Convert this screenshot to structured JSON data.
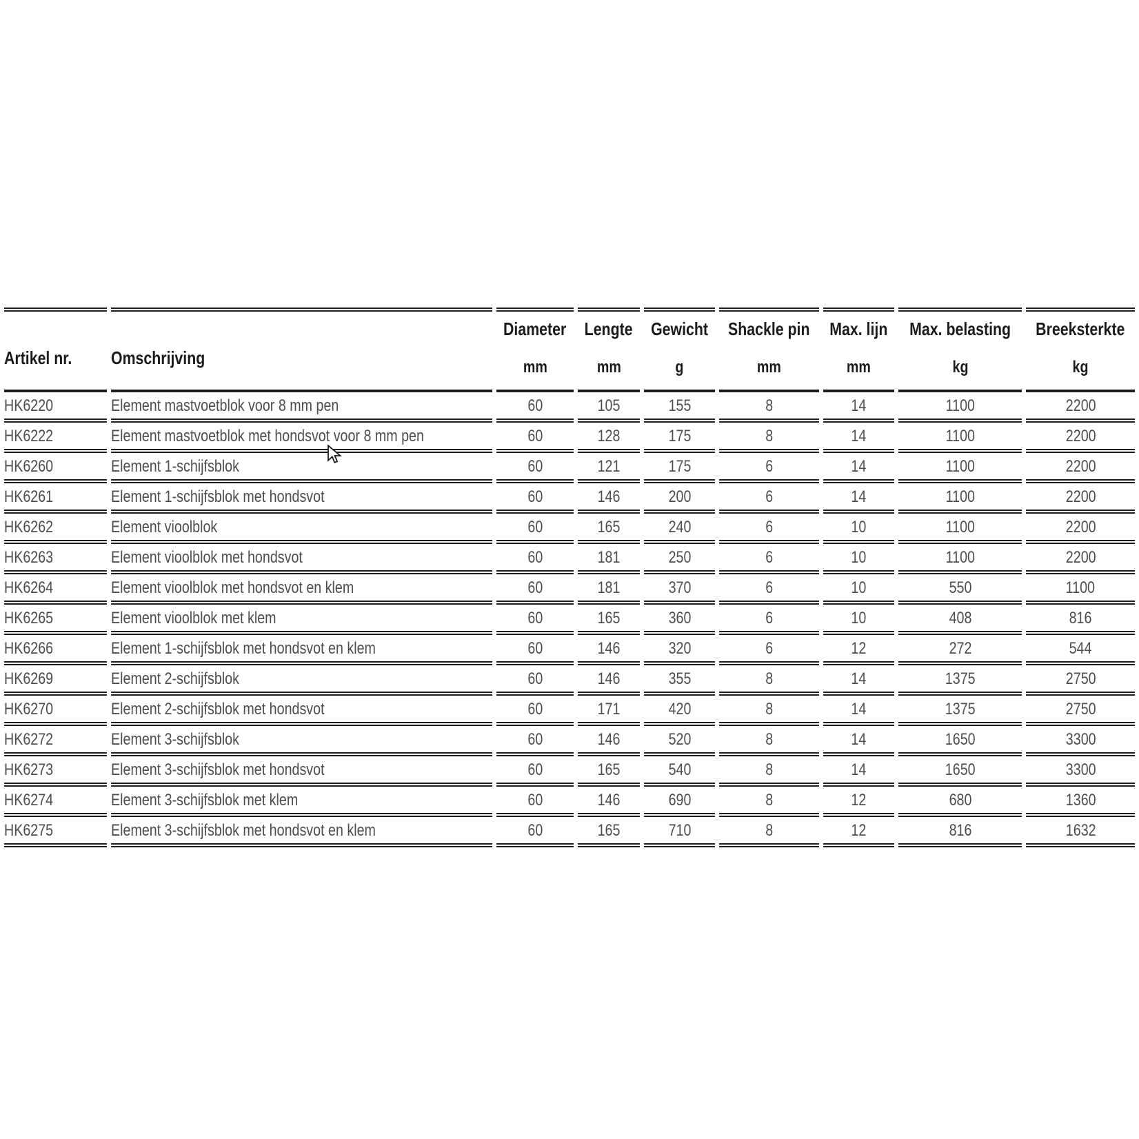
{
  "page": {
    "background": "#ffffff",
    "line_color": "#1c1c1c",
    "header_text_color": "#1b1b1b",
    "body_text_color": "#4d4d4d"
  },
  "table": {
    "columns": [
      {
        "label": "Artikel nr.",
        "unit": ""
      },
      {
        "label": "Omschrijving",
        "unit": ""
      },
      {
        "label": "Diameter",
        "unit": "mm"
      },
      {
        "label": "Lengte",
        "unit": "mm"
      },
      {
        "label": "Gewicht",
        "unit": "g"
      },
      {
        "label": "Shackle pin",
        "unit": "mm"
      },
      {
        "label": "Max. lijn",
        "unit": "mm"
      },
      {
        "label": "Max. belasting",
        "unit": "kg"
      },
      {
        "label": "Breeksterkte",
        "unit": "kg"
      }
    ],
    "rows": [
      [
        "HK6220",
        "Element mastvoetblok voor 8 mm pen",
        "60",
        "105",
        "155",
        "8",
        "14",
        "1100",
        "2200"
      ],
      [
        "HK6222",
        "Element mastvoetblok met hondsvot voor 8 mm pen",
        "60",
        "128",
        "175",
        "8",
        "14",
        "1100",
        "2200"
      ],
      [
        "HK6260",
        "Element 1-schijfsblok",
        "60",
        "121",
        "175",
        "6",
        "14",
        "1100",
        "2200"
      ],
      [
        "HK6261",
        "Element 1-schijfsblok met hondsvot",
        "60",
        "146",
        "200",
        "6",
        "14",
        "1100",
        "2200"
      ],
      [
        "HK6262",
        "Element vioolblok",
        "60",
        "165",
        "240",
        "6",
        "10",
        "1100",
        "2200"
      ],
      [
        "HK6263",
        "Element vioolblok met hondsvot",
        "60",
        "181",
        "250",
        "6",
        "10",
        "1100",
        "2200"
      ],
      [
        "HK6264",
        "Element vioolblok met hondsvot en klem",
        "60",
        "181",
        "370",
        "6",
        "10",
        "550",
        "1100"
      ],
      [
        "HK6265",
        "Element vioolblok met klem",
        "60",
        "165",
        "360",
        "6",
        "10",
        "408",
        "816"
      ],
      [
        "HK6266",
        "Element 1-schijfsblok met hondsvot en klem",
        "60",
        "146",
        "320",
        "6",
        "12",
        "272",
        "544"
      ],
      [
        "HK6269",
        "Element 2-schijfsblok",
        "60",
        "146",
        "355",
        "8",
        "14",
        "1375",
        "2750"
      ],
      [
        "HK6270",
        "Element 2-schijfsblok met hondsvot",
        "60",
        "171",
        "420",
        "8",
        "14",
        "1375",
        "2750"
      ],
      [
        "HK6272",
        "Element 3-schijfsblok",
        "60",
        "146",
        "520",
        "8",
        "14",
        "1650",
        "3300"
      ],
      [
        "HK6273",
        "Element 3-schijfsblok met hondsvot",
        "60",
        "165",
        "540",
        "8",
        "14",
        "1650",
        "3300"
      ],
      [
        "HK6274",
        "Element 3-schijfsblok met klem",
        "60",
        "146",
        "690",
        "8",
        "12",
        "680",
        "1360"
      ],
      [
        "HK6275",
        "Element 3-schijfsblok met hondsvot en klem",
        "60",
        "165",
        "710",
        "8",
        "12",
        "816",
        "1632"
      ]
    ]
  },
  "cursor": {
    "icon": "arrow-cursor"
  }
}
